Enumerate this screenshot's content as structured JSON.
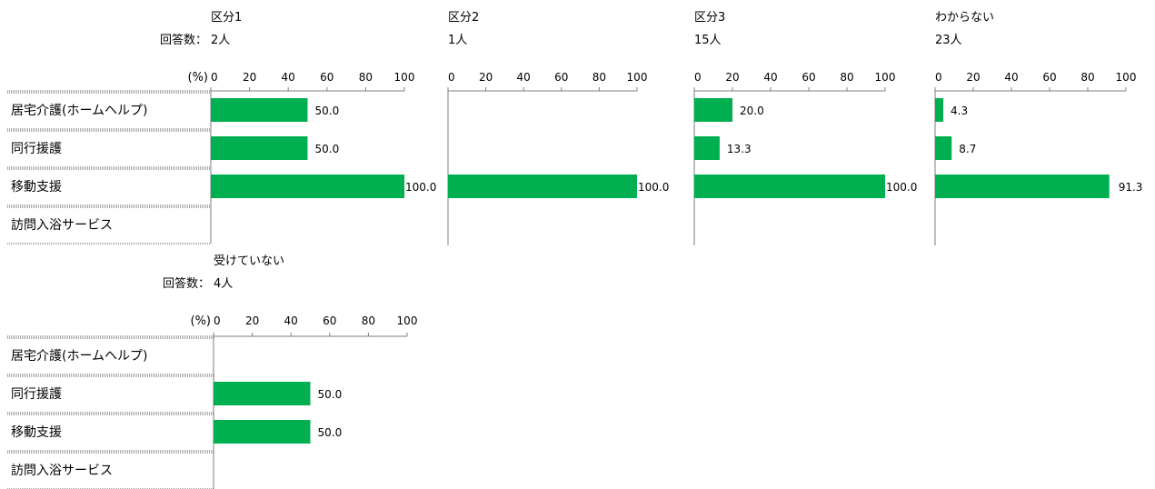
{
  "page": {
    "respondents_label": "回答数：",
    "unit_label": "(%)"
  },
  "chart_data": [
    {
      "type": "bar",
      "orientation": "horizontal",
      "title": "区分1",
      "respondents": "2人",
      "categories": [
        "居宅介護(ホームヘルプ)",
        "同行援護",
        "移動支援",
        "訪問入浴サービス"
      ],
      "values": [
        50.0,
        50.0,
        100.0,
        null
      ],
      "value_labels": [
        "50.0",
        "50.0",
        "100.0",
        ""
      ],
      "xlim": [
        0,
        100
      ],
      "xticks": [
        0,
        20,
        40,
        60,
        80,
        100
      ],
      "color": "#00b050"
    },
    {
      "type": "bar",
      "orientation": "horizontal",
      "title": "区分2",
      "respondents": "1人",
      "categories": [
        "居宅介護(ホームヘルプ)",
        "同行援護",
        "移動支援",
        "訪問入浴サービス"
      ],
      "values": [
        null,
        null,
        100.0,
        null
      ],
      "value_labels": [
        "",
        "",
        "100.0",
        ""
      ],
      "xlim": [
        0,
        100
      ],
      "xticks": [
        0,
        20,
        40,
        60,
        80,
        100
      ],
      "color": "#00b050"
    },
    {
      "type": "bar",
      "orientation": "horizontal",
      "title": "区分3",
      "respondents": "15人",
      "categories": [
        "居宅介護(ホームヘルプ)",
        "同行援護",
        "移動支援",
        "訪問入浴サービス"
      ],
      "values": [
        20.0,
        13.3,
        100.0,
        null
      ],
      "value_labels": [
        "20.0",
        "13.3",
        "100.0",
        ""
      ],
      "xlim": [
        0,
        100
      ],
      "xticks": [
        0,
        20,
        40,
        60,
        80,
        100
      ],
      "color": "#00b050"
    },
    {
      "type": "bar",
      "orientation": "horizontal",
      "title": "わからない",
      "respondents": "23人",
      "categories": [
        "居宅介護(ホームヘルプ)",
        "同行援護",
        "移動支援",
        "訪問入浴サービス"
      ],
      "values": [
        4.3,
        8.7,
        91.3,
        null
      ],
      "value_labels": [
        "4.3",
        "8.7",
        "91.3",
        ""
      ],
      "xlim": [
        0,
        100
      ],
      "xticks": [
        0,
        20,
        40,
        60,
        80,
        100
      ],
      "color": "#00b050"
    },
    {
      "type": "bar",
      "orientation": "horizontal",
      "title": "受けていない",
      "respondents": "4人",
      "categories": [
        "居宅介護(ホームヘルプ)",
        "同行援護",
        "移動支援",
        "訪問入浴サービス"
      ],
      "values": [
        null,
        50.0,
        50.0,
        null
      ],
      "value_labels": [
        "",
        "50.0",
        "50.0",
        ""
      ],
      "xlim": [
        0,
        100
      ],
      "xticks": [
        0,
        20,
        40,
        60,
        80,
        100
      ],
      "color": "#00b050"
    }
  ]
}
